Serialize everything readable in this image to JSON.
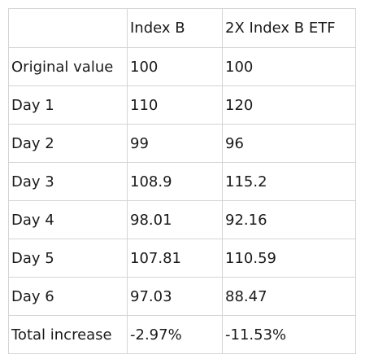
{
  "table": {
    "headers": [
      "",
      "Index B",
      "2X Index B ETF"
    ],
    "rows": [
      [
        "Original value",
        "100",
        "100"
      ],
      [
        "Day 1",
        "110",
        "120"
      ],
      [
        "Day 2",
        "99",
        "96"
      ],
      [
        "Day 3",
        "108.9",
        "115.2"
      ],
      [
        "Day 4",
        "98.01",
        "92.16"
      ],
      [
        "Day 5",
        "107.81",
        "110.59"
      ],
      [
        "Day 6",
        "97.03",
        "88.47"
      ],
      [
        "Total increase",
        "-2.97%",
        "-11.53%"
      ]
    ]
  }
}
